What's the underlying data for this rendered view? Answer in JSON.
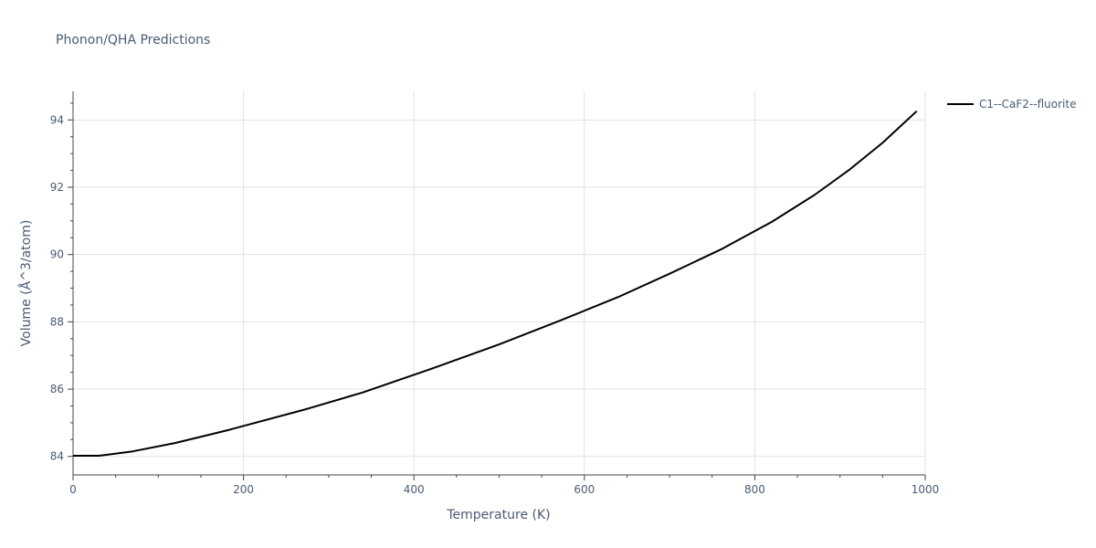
{
  "chart_data": {
    "type": "line",
    "title": "Phonon/QHA Predictions",
    "xlabel": "Temperature (K)",
    "ylabel": "Volume (Å^3/atom)",
    "xlim": [
      0,
      1000
    ],
    "ylim": [
      83.45,
      94.85
    ],
    "xticks": [
      0,
      200,
      400,
      600,
      800,
      1000
    ],
    "yticks": [
      84,
      86,
      88,
      90,
      92,
      94
    ],
    "grid": true,
    "legend_position": "top-right",
    "series": [
      {
        "name": "C1--CaF2--fluorite",
        "color": "#000000",
        "x": [
          0,
          30,
          40,
          70,
          120,
          180,
          270,
          340,
          420,
          500,
          570,
          640,
          700,
          760,
          820,
          870,
          910,
          950,
          990
        ],
        "y": [
          84.02,
          84.02,
          84.05,
          84.15,
          84.4,
          84.77,
          85.38,
          85.9,
          86.6,
          87.33,
          88.02,
          88.74,
          89.43,
          90.15,
          90.97,
          91.77,
          92.5,
          93.32,
          94.26
        ]
      }
    ]
  }
}
